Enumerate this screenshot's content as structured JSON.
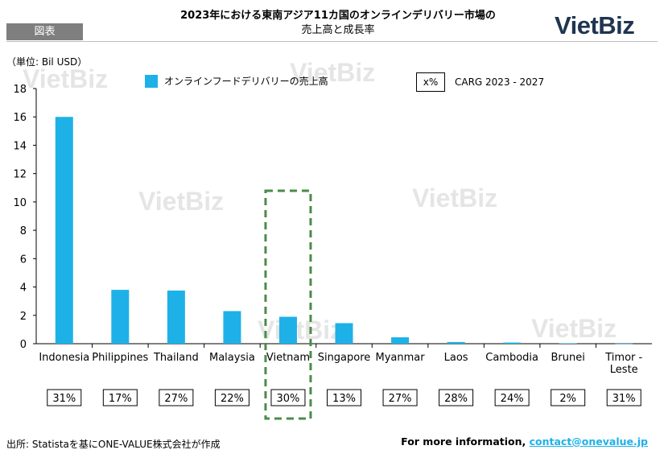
{
  "header": {
    "figure_label": "図表",
    "title_line1": "2023年における東南アジア11カ国のオンラインデリバリー市場の",
    "title_line2": "売上高と成長率",
    "logo": "VietBiz"
  },
  "watermark": "VietBiz",
  "chart_data": {
    "type": "bar",
    "unit_label": "（単位: Bil USD）",
    "categories": [
      "Indonesia",
      "Philippines",
      "Thailand",
      "Malaysia",
      "Vietnam",
      "Singapore",
      "Myanmar",
      "Laos",
      "Cambodia",
      "Brunei",
      "Timor - Leste"
    ],
    "series": [
      {
        "name": "オンラインフードデリバリーの売上高",
        "color": "#1eb1e8",
        "values": [
          16.0,
          3.8,
          3.75,
          2.3,
          1.9,
          1.45,
          0.45,
          0.12,
          0.08,
          0.03,
          0.01
        ]
      }
    ],
    "cagr_legend_symbol": "x%",
    "cagr_legend_label": "CARG 2023 - 2027",
    "cagr": [
      "31%",
      "17%",
      "27%",
      "22%",
      "30%",
      "13%",
      "27%",
      "28%",
      "24%",
      "2%",
      "31%"
    ],
    "ylim": [
      0,
      18
    ],
    "yticks": [
      0,
      2,
      4,
      6,
      8,
      10,
      12,
      14,
      16,
      18
    ],
    "highlight_category": "Vietnam",
    "highlight_color": "#4a8c4a"
  },
  "footer": {
    "source": "出所: Statistaを基にONE-VALUE株式会社が作成",
    "contact_prefix": "For more information, ",
    "contact_email": "contact@onevalue.jp"
  }
}
